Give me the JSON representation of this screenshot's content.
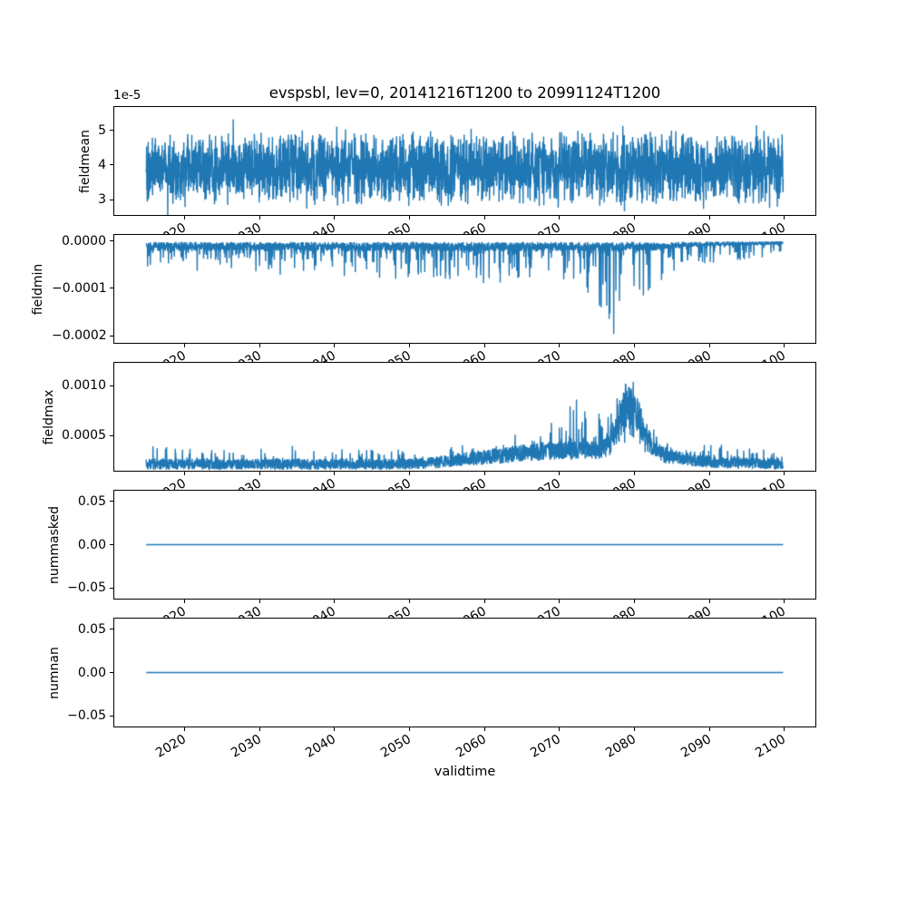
{
  "figure": {
    "title": "evspsbl, lev=0, 20141216T1200 to 20991124T1200",
    "xlabel": "validtime",
    "line_color": "#1f77b4",
    "background_color": "#ffffff",
    "text_color": "#000000",
    "xlim": [
      2010.7,
      2104.2
    ],
    "x_data_range": [
      2014.96,
      2099.9
    ],
    "x_ticks": [
      2020,
      2030,
      2040,
      2050,
      2060,
      2070,
      2080,
      2090,
      2100
    ],
    "x_tick_labels": [
      "2020",
      "2030",
      "2040",
      "2050",
      "2060",
      "2070",
      "2080",
      "2090",
      "2100"
    ],
    "x_tick_rotation_deg": 30
  },
  "chart_data": [
    {
      "type": "line",
      "name": "fieldmean",
      "ylabel": "fieldmean",
      "offset_text": "1e-5",
      "ylim": [
        2.56e-05,
        5.67e-05
      ],
      "yticks": [
        3e-05,
        4e-05,
        5e-05
      ],
      "ytick_labels": [
        "3",
        "4",
        "5"
      ],
      "series_summary": "Dense noisy band oscillating between ~2.7e-5 and ~5.5e-5 over the whole 2015-2100 period, mean ~3.9e-5, no trend.",
      "gen": {
        "kind": "noisy_band",
        "seed": 101,
        "n": 3200,
        "base": 3.9e-05,
        "spread": 1.15e-05,
        "extra_prob": 0.04,
        "extra_amp": 6e-06
      }
    },
    {
      "type": "line",
      "name": "fieldmin",
      "ylabel": "fieldmin",
      "offset_text": "",
      "ylim": [
        -0.000215,
        1.3e-05
      ],
      "yticks": [
        0,
        -0.0001,
        -0.0002
      ],
      "ytick_labels": [
        "0.0000",
        "−0.0001",
        "−0.0002"
      ],
      "series_summary": "Noise hugging 0 from below (~-0.5e-5 to -2e-5) with frequent downward spikes to -5e-5..-1e-4; spike depth grows toward 2075-2082 reaching ~-2.1e-4 near 2078-2080, then band tightens toward 0 after ~2083.",
      "gen": {
        "kind": "neg_spikes",
        "seed": 202,
        "n": 3200,
        "base_floor": 2e-06,
        "base_amp": 1.9e-05,
        "spike_prob": 0.17,
        "spike_amp": 6e-05,
        "peak_center": 2078,
        "peak_sigma": 3.0,
        "peak_gain": 2.7,
        "taper_start": 2083,
        "taper_floor": 0.28,
        "clip_min": -0.000212
      }
    },
    {
      "type": "line",
      "name": "fieldmax",
      "ylabel": "fieldmax",
      "offset_text": "",
      "ylim": [
        0.00015,
        0.00123
      ],
      "yticks": [
        0.0005,
        0.001
      ],
      "ytick_labels": [
        "0.0005",
        "0.0010"
      ],
      "series_summary": "Noisy band ~1.7e-4..3.0e-4 slowly rising from ~2050; upward spikes to ~6e-4 around 2070-2076; strong burst 2077-2082 oscillating up to ~1.15e-3 (near top of axis), then back to the low band through 2100.",
      "gen": {
        "kind": "pos_peak",
        "seed": 303,
        "n": 3200,
        "base": 0.00016,
        "band": 0.00011,
        "rise_start": 2048,
        "rise_end": 2072,
        "rise_amp": 0.0001,
        "spike_prob": 0.12,
        "spike_amp": 0.00015,
        "peak_center": 2079.4,
        "peak_sigma": 2.1,
        "peak_amp": 0.0007,
        "clip_max": 0.00121
      }
    },
    {
      "type": "line",
      "name": "nummasked",
      "ylabel": "nummasked",
      "offset_text": "",
      "ylim": [
        -0.0625,
        0.0625
      ],
      "yticks": [
        0.05,
        0.0,
        -0.05
      ],
      "ytick_labels": [
        "0.05",
        "0.00",
        "−0.05"
      ],
      "series_summary": "Constant 0 for the entire period (flat horizontal line).",
      "gen": {
        "kind": "constant",
        "seed": 1,
        "n": 400,
        "value": 0
      }
    },
    {
      "type": "line",
      "name": "numnan",
      "ylabel": "numnan",
      "offset_text": "",
      "ylim": [
        -0.0625,
        0.0625
      ],
      "yticks": [
        0.05,
        0.0,
        -0.05
      ],
      "ytick_labels": [
        "0.05",
        "0.00",
        "−0.05"
      ],
      "series_summary": "Constant 0 for the entire period (flat horizontal line).",
      "gen": {
        "kind": "constant",
        "seed": 2,
        "n": 400,
        "value": 0
      }
    }
  ]
}
